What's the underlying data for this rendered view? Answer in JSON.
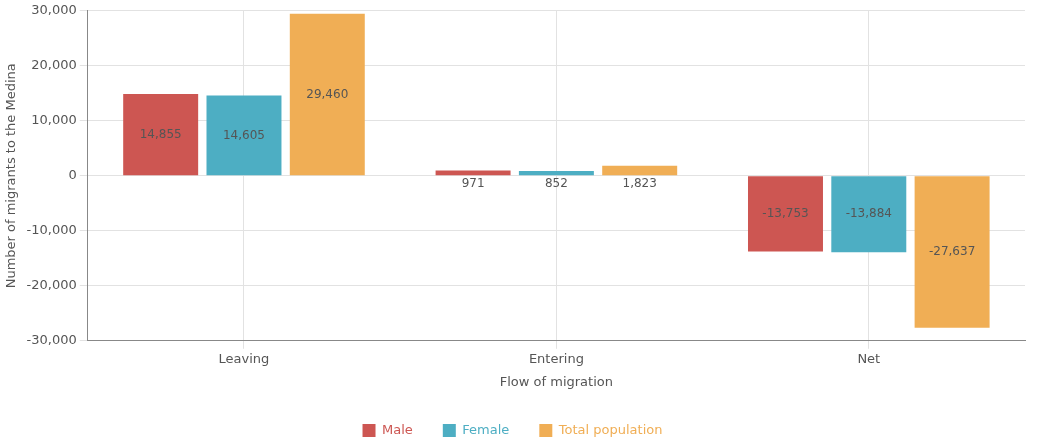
{
  "chart_data": {
    "type": "bar",
    "xlabel": "Flow of migration",
    "ylabel": "Number of migrants to the Medina",
    "categories": [
      "Leaving",
      "Entering",
      "Net"
    ],
    "series": [
      {
        "name": "Male",
        "color": "#cd5652",
        "values": [
          14855,
          971,
          -13753
        ],
        "value_labels": [
          "14,855",
          "971",
          "-13,753"
        ]
      },
      {
        "name": "Female",
        "color": "#4daec3",
        "values": [
          14605,
          852,
          -13884
        ],
        "value_labels": [
          "14,605",
          "852",
          "-13,884"
        ]
      },
      {
        "name": "Total population",
        "color": "#f0ae55",
        "values": [
          29460,
          1823,
          -27637
        ],
        "value_labels": [
          "29,460",
          "1,823",
          "-27,637"
        ]
      }
    ],
    "ylim": [
      -30000,
      30000
    ],
    "yticks": [
      {
        "value": -30000,
        "label": "-30,000"
      },
      {
        "value": -20000,
        "label": "-20,000"
      },
      {
        "value": -10000,
        "label": "-10,000"
      },
      0,
      {
        "value": 10000,
        "label": "10,000"
      },
      {
        "value": 20000,
        "label": "20,000"
      },
      {
        "value": 30000,
        "label": "30,000"
      }
    ],
    "grid": true,
    "legend": "bottom"
  }
}
